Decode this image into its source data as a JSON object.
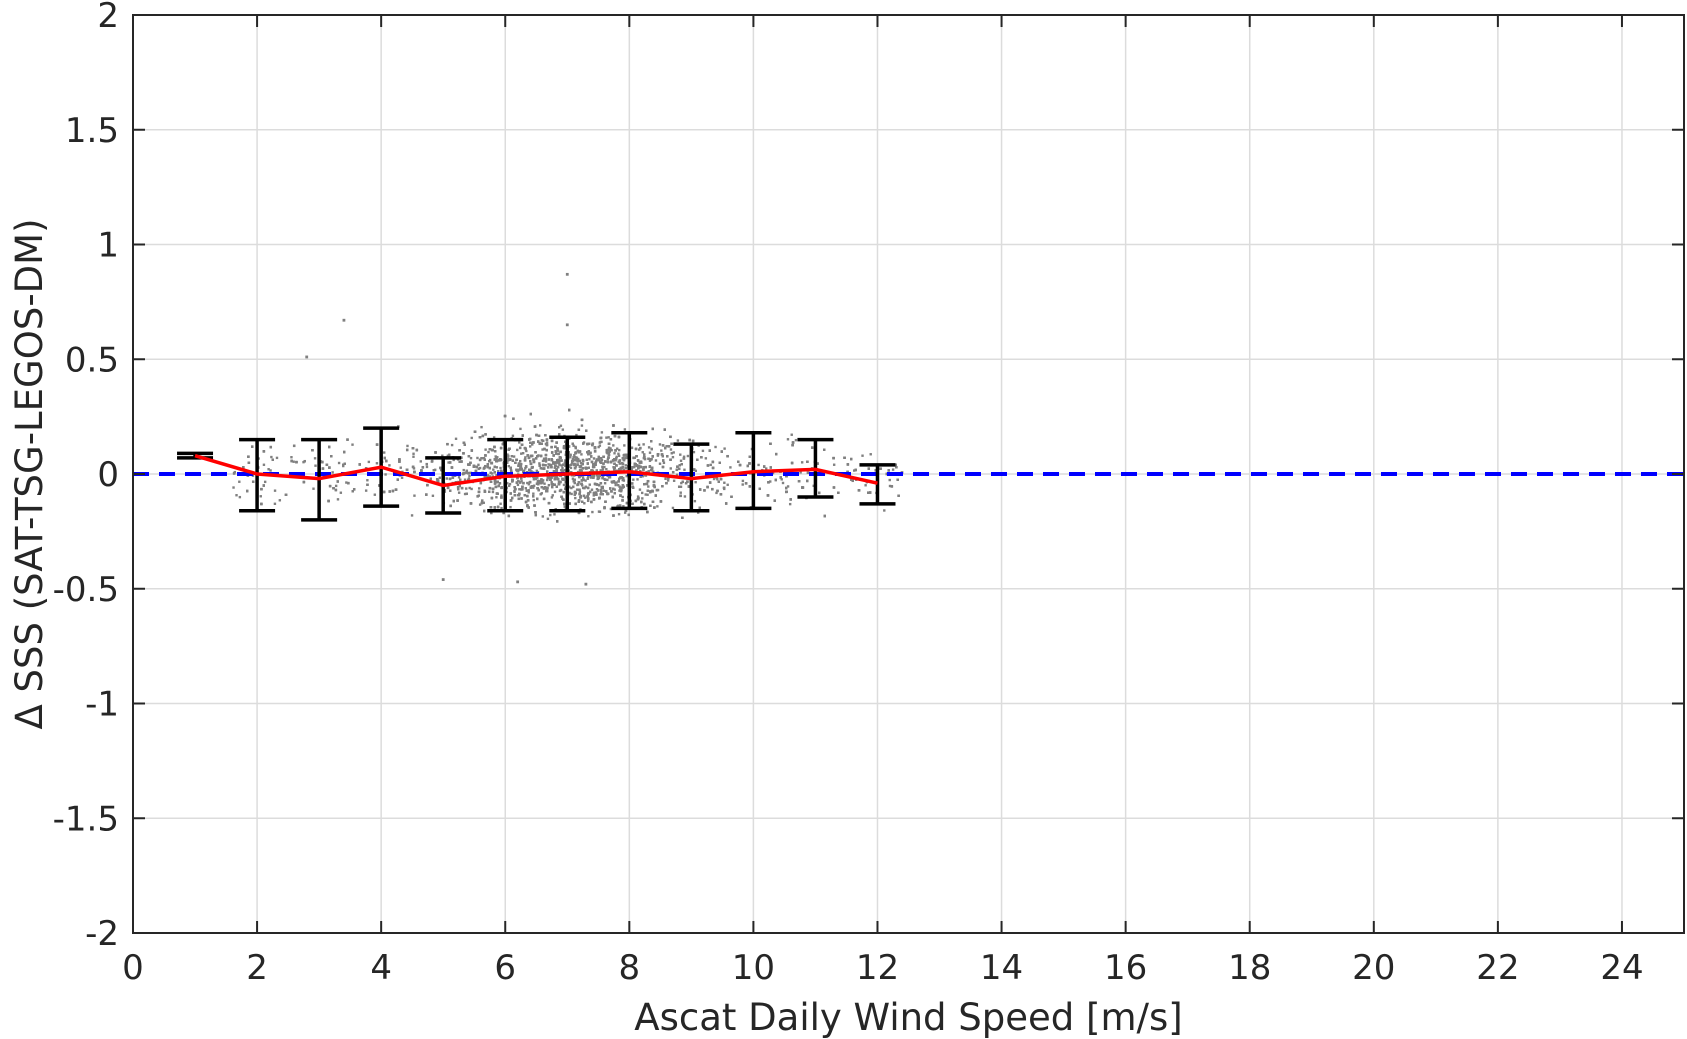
{
  "chart_data": {
    "type": "scatter",
    "title": "",
    "xlabel": "Ascat Daily Wind Speed [m/s]",
    "ylabel": "Δ SSS (SAT-TSG-LEGOS-DM)",
    "xlim": [
      0,
      25
    ],
    "ylim": [
      -2,
      2
    ],
    "x_ticks": [
      "0",
      "2",
      "4",
      "6",
      "8",
      "10",
      "12",
      "14",
      "16",
      "18",
      "20",
      "22",
      "24"
    ],
    "y_ticks": [
      "2",
      "1.5",
      "1",
      "0.5",
      "0",
      "-0.5",
      "-1",
      "-1.5",
      "-2"
    ],
    "grid": true,
    "legend": "none",
    "reference_line": {
      "y": 0,
      "style": "dashed",
      "color": "#0000ff"
    },
    "scatter": {
      "color": "#808080",
      "x_range": [
        1.6,
        12.4
      ],
      "y_range": [
        -0.48,
        0.87
      ],
      "approx_points": 4000
    },
    "mean_line": {
      "color": "#ff0000",
      "x": [
        1,
        2,
        3,
        4,
        5,
        6,
        7,
        8,
        9,
        10,
        11,
        12
      ],
      "y": [
        0.08,
        0.0,
        -0.02,
        0.03,
        -0.05,
        -0.01,
        0.0,
        0.01,
        -0.02,
        0.01,
        0.02,
        -0.04
      ]
    },
    "error_bars": {
      "color": "#000000",
      "x": [
        1,
        2,
        3,
        4,
        5,
        6,
        7,
        8,
        9,
        10,
        11,
        12
      ],
      "lower": [
        0.07,
        -0.16,
        -0.2,
        -0.14,
        -0.17,
        -0.16,
        -0.16,
        -0.15,
        -0.16,
        -0.15,
        -0.1,
        -0.13
      ],
      "upper": [
        0.09,
        0.15,
        0.15,
        0.2,
        0.07,
        0.15,
        0.16,
        0.18,
        0.13,
        0.18,
        0.15,
        0.04
      ]
    },
    "outliers": [
      {
        "x": 7.0,
        "y": 0.87
      },
      {
        "x": 7.0,
        "y": 0.65
      },
      {
        "x": 3.4,
        "y": 0.67
      },
      {
        "x": 2.8,
        "y": 0.51
      },
      {
        "x": 6.2,
        "y": -0.47
      },
      {
        "x": 7.3,
        "y": -0.48
      },
      {
        "x": 5.0,
        "y": -0.46
      }
    ]
  }
}
